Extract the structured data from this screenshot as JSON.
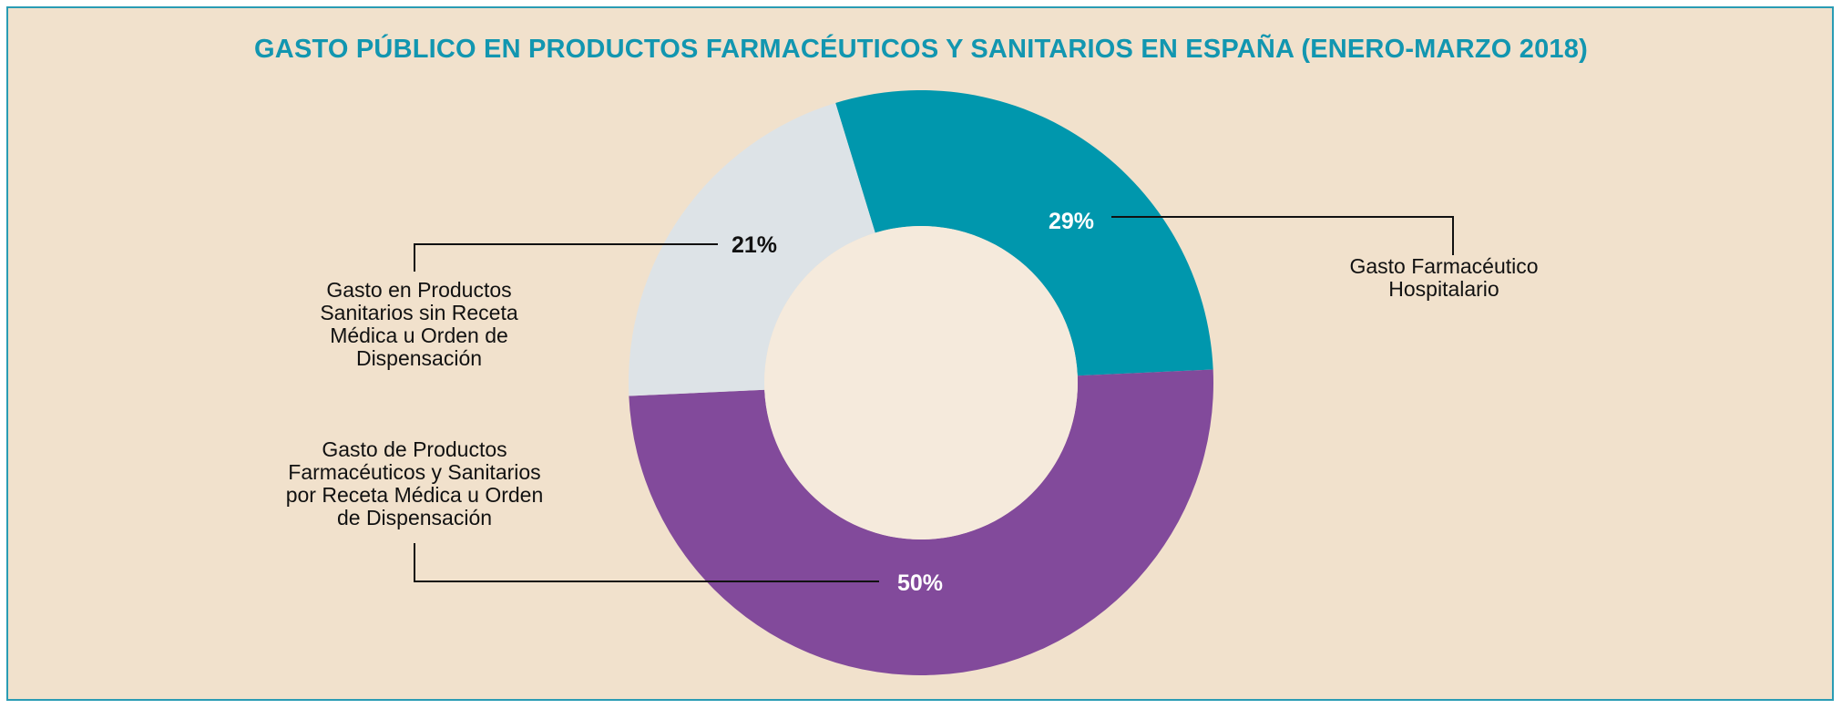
{
  "chart_data": {
    "type": "pie",
    "title": "GASTO PÚBLICO EN PRODUCTOS FARMACÉUTICOS Y SANITARIOS EN ESPAÑA (ENERO-MARZO 2018)",
    "slices": [
      {
        "name": "Gasto Farmacéutico Hospitalario",
        "label_lines": [
          "Gasto Farmacéutico",
          "Hospitalario"
        ],
        "value": 29,
        "value_label": "29%",
        "color": "#0097ad",
        "value_label_color": "#ffffff"
      },
      {
        "name": "Gasto de Productos Farmacéuticos y Sanitarios por Receta Médica u Orden de Dispensación",
        "label_lines": [
          "Gasto de Productos",
          "Farmacéuticos y Sanitarios",
          "por Receta Médica u Orden",
          "de Dispensación"
        ],
        "value": 50,
        "value_label": "50%",
        "color": "#824a9b",
        "value_label_color": "#ffffff"
      },
      {
        "name": "Gasto en Productos Sanitarios sin Receta Médica u Orden de Dispensación",
        "label_lines": [
          "Gasto en Productos",
          "Sanitarios sin Receta",
          "Médica u Orden de",
          "Dispensación"
        ],
        "value": 21,
        "value_label": "21%",
        "color": "#dde3e7",
        "value_label_color": "#111111"
      }
    ],
    "hole_color": "#f5eadc",
    "background_color": "#f1e1cc",
    "title_color": "#1296b0"
  }
}
